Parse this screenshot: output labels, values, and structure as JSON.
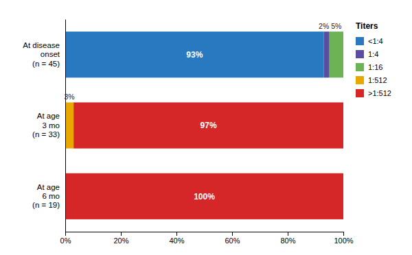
{
  "chart_data": {
    "type": "bar",
    "orientation": "horizontal",
    "stacked": true,
    "data_labels": true,
    "categories": [
      "At age\n6 mo\n(n = 19)",
      "At age\n3 mo\n(n = 33)",
      "At disease\nonset\n(n = 45)"
    ],
    "legend_title": "Titers",
    "series": [
      {
        "name": "<1:4",
        "color": "#2879c0",
        "values": [
          0,
          0,
          93
        ],
        "value_labels": [
          null,
          null,
          "93%"
        ]
      },
      {
        "name": "1:4",
        "color": "#5b4ea0",
        "values": [
          0,
          0,
          2
        ],
        "value_labels": [
          null,
          null,
          "2%"
        ]
      },
      {
        "name": "1:16",
        "color": "#6db356",
        "values": [
          0,
          0,
          5
        ],
        "value_labels": [
          null,
          null,
          "5%"
        ]
      },
      {
        "name": "1:512",
        "color": "#e8a800",
        "values": [
          0,
          3,
          0
        ],
        "value_labels": [
          null,
          "3%",
          null
        ]
      },
      {
        "name": ">1:512",
        "color": "#d62728",
        "values": [
          100,
          97,
          0
        ],
        "value_labels": [
          "100%",
          "97%",
          null
        ]
      }
    ],
    "xlim": [
      0,
      100
    ],
    "xticks": [
      {
        "value": 0,
        "label": "0%"
      },
      {
        "value": 20,
        "label": "20%"
      },
      {
        "value": 40,
        "label": "40%"
      },
      {
        "value": 60,
        "label": "60%"
      },
      {
        "value": 80,
        "label": "80%"
      },
      {
        "value": 100,
        "label": "100%"
      }
    ]
  }
}
